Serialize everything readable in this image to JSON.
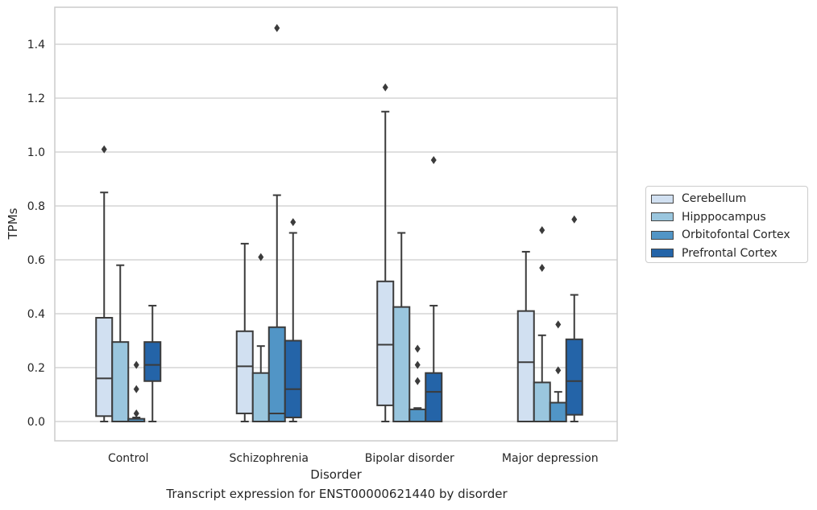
{
  "chart_data": {
    "type": "box",
    "caption": "Transcript expression for ENST00000621440 by disorder",
    "xlabel": "Disorder",
    "ylabel": "TPMs",
    "ylim": [
      -0.07,
      1.54
    ],
    "yticks": [
      "0.0",
      "0.2",
      "0.4",
      "0.6",
      "0.8",
      "1.0",
      "1.2",
      "1.4"
    ],
    "grid": true,
    "legend_position": "right",
    "categories": [
      "Control",
      "Schizophrenia",
      "Bipolar disorder",
      "Major depression"
    ],
    "series": [
      {
        "name": "Cerebellum",
        "color": "#d1e0f1",
        "boxes": [
          {
            "min": 0.0,
            "q1": 0.02,
            "median": 0.16,
            "q3": 0.385,
            "max": 0.85,
            "outliers": [
              1.01
            ]
          },
          {
            "min": 0.0,
            "q1": 0.03,
            "median": 0.205,
            "q3": 0.335,
            "max": 0.66,
            "outliers": []
          },
          {
            "min": 0.0,
            "q1": 0.06,
            "median": 0.285,
            "q3": 0.52,
            "max": 1.15,
            "outliers": [
              1.24
            ]
          },
          {
            "min": 0.0,
            "q1": 0.0,
            "median": 0.22,
            "q3": 0.41,
            "max": 0.63,
            "outliers": []
          }
        ]
      },
      {
        "name": "Hipppocampus",
        "color": "#9ac6de",
        "boxes": [
          {
            "min": 0.0,
            "q1": 0.0,
            "median": 0.0,
            "q3": 0.295,
            "max": 0.58,
            "outliers": []
          },
          {
            "min": 0.0,
            "q1": 0.0,
            "median": 0.0,
            "q3": 0.18,
            "max": 0.28,
            "outliers": [
              0.61
            ]
          },
          {
            "min": 0.0,
            "q1": 0.0,
            "median": 0.0,
            "q3": 0.425,
            "max": 0.7,
            "outliers": []
          },
          {
            "min": 0.0,
            "q1": 0.0,
            "median": 0.0,
            "q3": 0.145,
            "max": 0.32,
            "outliers": [
              0.57,
              0.71
            ]
          }
        ]
      },
      {
        "name": "Orbitofontal Cortex",
        "color": "#5195c6",
        "boxes": [
          {
            "min": 0.0,
            "q1": 0.0,
            "median": 0.0,
            "q3": 0.01,
            "max": 0.015,
            "outliers": [
              0.21,
              0.12,
              0.03
            ]
          },
          {
            "min": 0.0,
            "q1": 0.0,
            "median": 0.03,
            "q3": 0.35,
            "max": 0.84,
            "outliers": [
              1.46
            ]
          },
          {
            "min": 0.0,
            "q1": 0.0,
            "median": 0.0,
            "q3": 0.045,
            "max": 0.05,
            "outliers": [
              0.27,
              0.21,
              0.15
            ]
          },
          {
            "min": 0.0,
            "q1": 0.0,
            "median": 0.0,
            "q3": 0.07,
            "max": 0.11,
            "outliers": [
              0.36,
              0.19
            ]
          }
        ]
      },
      {
        "name": "Prefrontal Cortex",
        "color": "#2464a8",
        "boxes": [
          {
            "min": 0.0,
            "q1": 0.15,
            "median": 0.21,
            "q3": 0.295,
            "max": 0.43,
            "outliers": []
          },
          {
            "min": 0.0,
            "q1": 0.015,
            "median": 0.12,
            "q3": 0.3,
            "max": 0.7,
            "outliers": [
              0.74
            ]
          },
          {
            "min": 0.0,
            "q1": 0.0,
            "median": 0.11,
            "q3": 0.18,
            "max": 0.43,
            "outliers": [
              0.97
            ]
          },
          {
            "min": 0.0,
            "q1": 0.025,
            "median": 0.15,
            "q3": 0.305,
            "max": 0.47,
            "outliers": [
              0.75
            ]
          }
        ]
      }
    ]
  }
}
